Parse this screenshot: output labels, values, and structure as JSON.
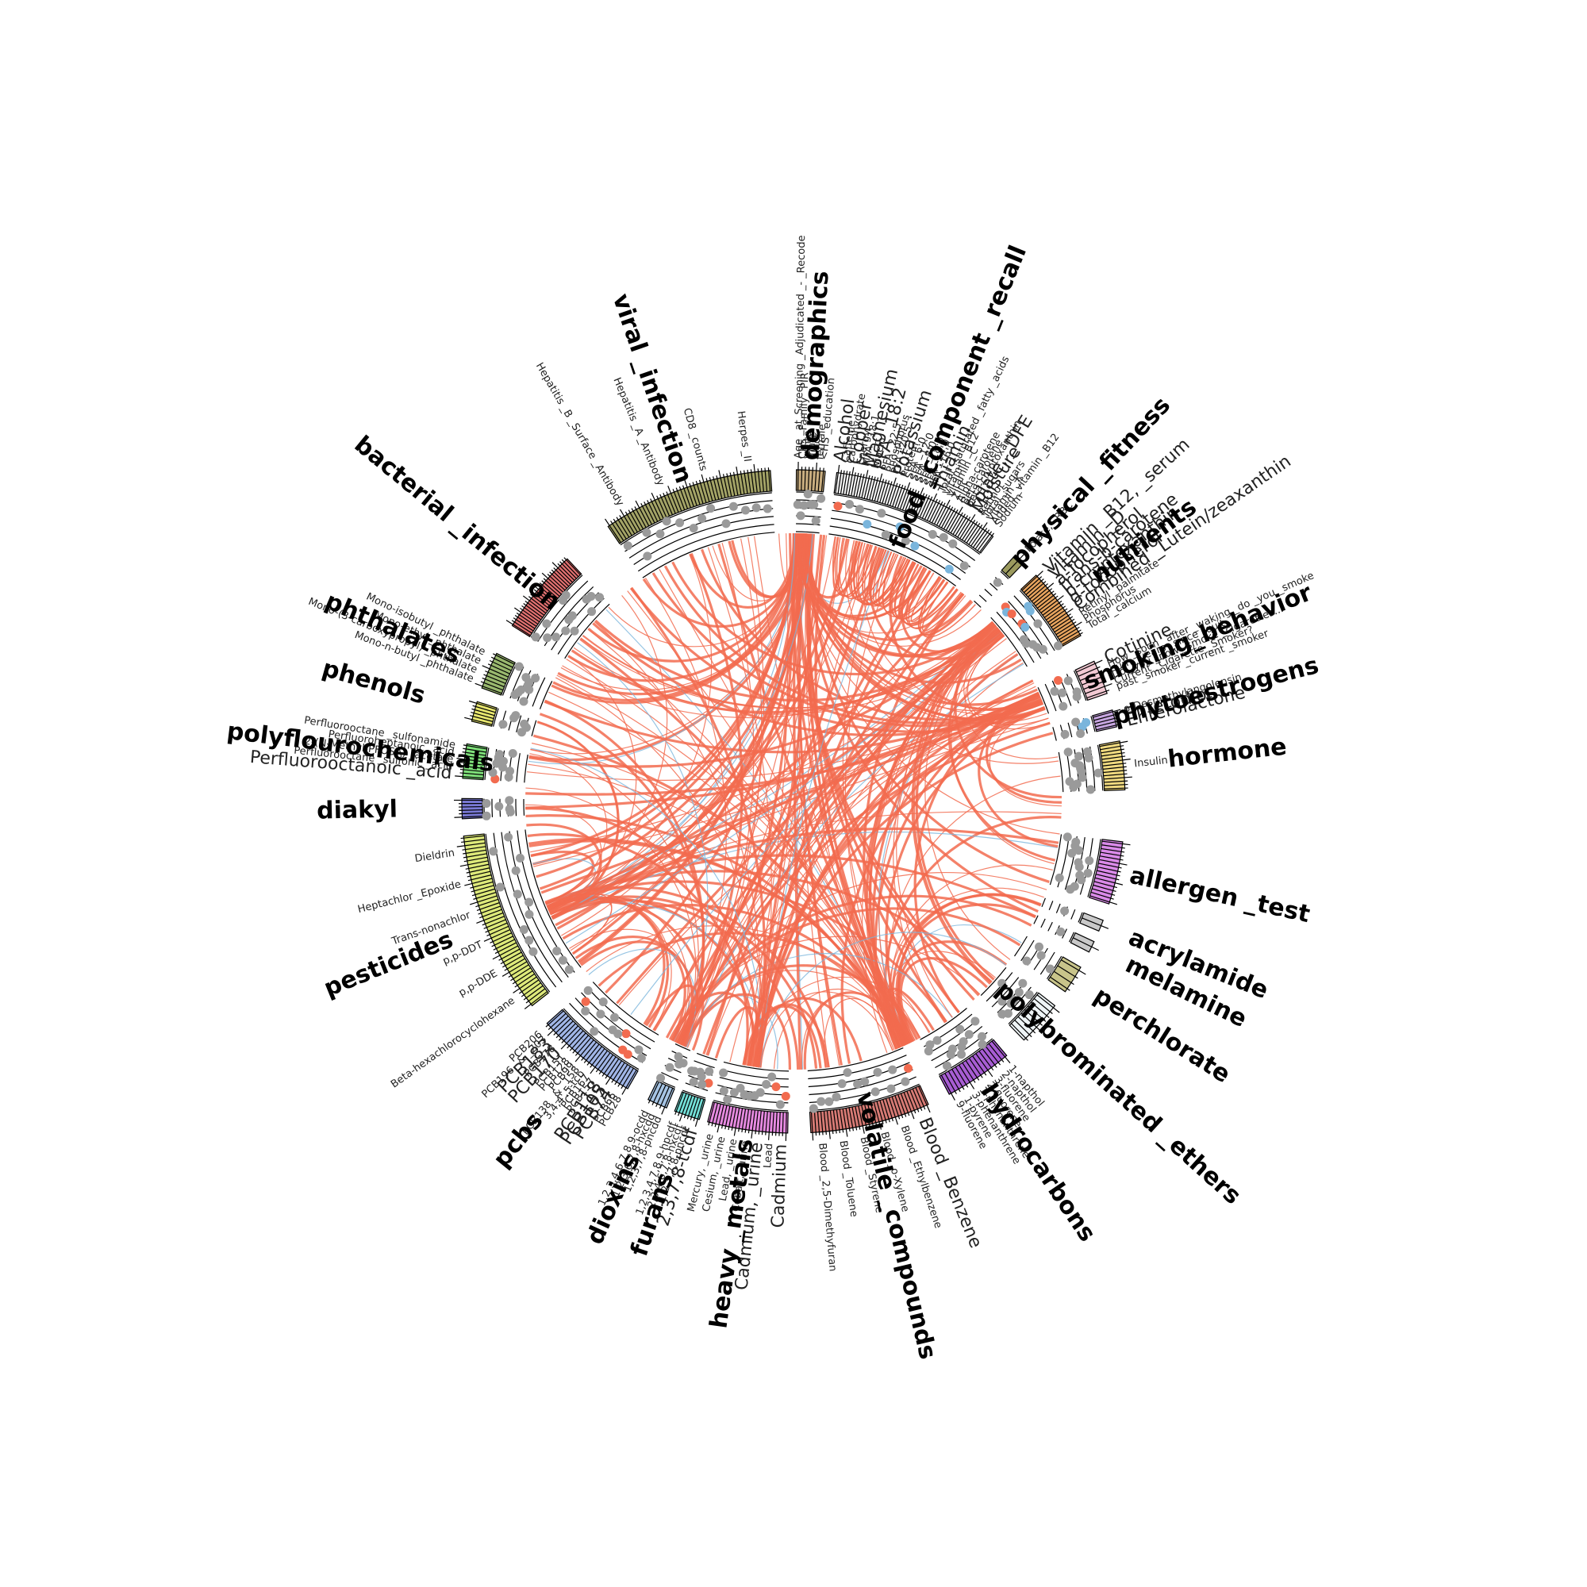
{
  "colors": {
    "positive": "#f26b4f",
    "negative": "#7ab5dc",
    "neutral": "#9a9a9a"
  },
  "categories": [
    {
      "name": "demographics",
      "color": "#c8ad7f",
      "n": 8,
      "labels": [
        {
          "text": "Age _at_Screening _Adjudicated _- _Recode",
          "color": "neutral"
        },
        {
          "text": "CPS _Family _PIR",
          "color": "neutral"
        },
        {
          "text": "white",
          "color": "neutral"
        },
        {
          "text": "male",
          "color": "neutral"
        },
        {
          "text": "black",
          "color": "neutral"
        },
        {
          "text": "female",
          "color": "neutral"
        },
        {
          "text": "<HS _education",
          "color": "neutral"
        }
      ]
    },
    {
      "name": "food _component _recall",
      "color": "#f3f3f3",
      "n": 60,
      "labels": [
        {
          "text": "Alcohol",
          "color": "positive"
        },
        {
          "text": "Caffeine",
          "color": "neutral"
        },
        {
          "text": "Carbohydrate",
          "color": "neutral"
        },
        {
          "text": "Copper",
          "color": "negative"
        },
        {
          "text": "Energy",
          "color": "neutral"
        },
        {
          "text": "MFA _18:1",
          "color": "neutral"
        },
        {
          "text": "Magnesium",
          "color": "negative"
        },
        {
          "text": "Niacin",
          "color": "neutral"
        },
        {
          "text": "PFA _18:2",
          "color": "negative"
        },
        {
          "text": "PFA _22:5",
          "color": "neutral"
        },
        {
          "text": "Phosphorus",
          "color": "neutral"
        },
        {
          "text": "PFA _20:5",
          "color": "neutral"
        },
        {
          "text": "Potassium",
          "color": "negative"
        },
        {
          "text": "Protein",
          "color": "neutral"
        },
        {
          "text": "SFA _6:0",
          "color": "neutral"
        },
        {
          "text": "SFA _12:0",
          "color": "neutral"
        },
        {
          "text": "SFA _8:0",
          "color": "neutral"
        },
        {
          "text": "SFA _18:0",
          "color": "neutral"
        },
        {
          "text": "SFA _14:0",
          "color": "neutral"
        },
        {
          "text": "SFA _16:0",
          "color": "neutral"
        },
        {
          "text": "Thiamin",
          "color": "negative"
        },
        {
          "text": "Total _saturated _fatty _acids",
          "color": "neutral"
        },
        {
          "text": "Vitamin _B12",
          "color": "neutral"
        },
        {
          "text": "Vitamin _C",
          "color": "neutral"
        },
        {
          "text": "Zinc",
          "color": "neutral"
        },
        {
          "text": "Alpha-carotene",
          "color": "neutral"
        },
        {
          "text": "Beta-carotene",
          "color": "neutral"
        },
        {
          "text": "Beta-cryptoxanthin",
          "color": "neutral"
        },
        {
          "text": "Folate, _DFE",
          "color": "negative"
        },
        {
          "text": "Moisture",
          "color": "positive"
        },
        {
          "text": "Retinol",
          "color": "neutral"
        },
        {
          "text": "Total _sugars",
          "color": "neutral"
        },
        {
          "text": "Vitamin _K",
          "color": "neutral"
        },
        {
          "text": "Added _vitamin _B12",
          "color": "neutral"
        },
        {
          "text": "Sodium",
          "color": "neutral"
        }
      ]
    },
    {
      "name": "physical _fitness",
      "color": "#9b9a5e",
      "n": 1,
      "labels": [
        {
          "text": "Folate, _RBC",
          "color": "neutral"
        }
      ]
    },
    {
      "name": "nutrients",
      "color": "#e6a35e",
      "n": 24,
      "labels": [
        {
          "text": "Vitamin _B12, _serum",
          "color": "positive"
        },
        {
          "text": "Vitamin _D",
          "color": "negative"
        },
        {
          "text": "a-Tocopherol",
          "color": "positive"
        },
        {
          "text": "trans-b-carotene",
          "color": "negative"
        },
        {
          "text": "b-cryptoxanthin",
          "color": "negative"
        },
        {
          "text": "g-tocopherol",
          "color": "positive"
        },
        {
          "text": "Combined _Lutein/zeaxanthin",
          "color": "negative"
        },
        {
          "text": "Retinyl _palmitate",
          "color": "neutral"
        },
        {
          "text": "Phosphorus",
          "color": "neutral"
        },
        {
          "text": "Total _calcium",
          "color": "neutral"
        }
      ]
    },
    {
      "name": "smoking_behavior",
      "color": "#f3c9d3",
      "n": 7,
      "labels": [
        {
          "text": "Cotinine",
          "color": "positive"
        },
        {
          "text": "How _soon _after _waking _do _you _smoke",
          "color": "neutral"
        },
        {
          "text": "num _years _since _quit",
          "color": "neutral"
        },
        {
          "text": "Do _you _now _smoke _cigarettes...",
          "color": "neutral"
        },
        {
          "text": "Current _Cigarette _Smoker?",
          "color": "neutral"
        },
        {
          "text": "past _smoker _current _smoker",
          "color": "neutral"
        }
      ]
    },
    {
      "name": "phytoestrogens",
      "color": "#c7a6e0",
      "n": 5,
      "labels": [
        {
          "text": "o-Desmethylangolensin",
          "color": "neutral"
        },
        {
          "text": "Enterodiol",
          "color": "negative"
        },
        {
          "text": "Enterolactone",
          "color": "negative"
        }
      ]
    },
    {
      "name": "hormone",
      "color": "#f0da80",
      "n": 14,
      "labels": [
        {
          "text": "Insulin",
          "color": "neutral"
        }
      ]
    },
    {
      "name": "allergen _test",
      "color": "#d98ae8",
      "n": 16,
      "labels": []
    },
    {
      "name": "acrylamide",
      "color": "#c9c9c9",
      "n": 1,
      "labels": []
    },
    {
      "name": "melamine",
      "color": "#c9c9c9",
      "n": 1,
      "labels": []
    },
    {
      "name": "perchlorate",
      "color": "#c8c48a",
      "n": 4,
      "labels": []
    },
    {
      "name": "polybrominated _ethers",
      "color": "#eef4f6",
      "n": 9,
      "labels": []
    },
    {
      "name": "hydrocarbons",
      "color": "#a75dd3",
      "n": 16,
      "labels": [
        {
          "text": "1-napthol",
          "color": "neutral"
        },
        {
          "text": "2-napthol",
          "color": "neutral"
        },
        {
          "text": "3-fluorene",
          "color": "neutral"
        },
        {
          "text": "2-fluorene",
          "color": "neutral"
        },
        {
          "text": "1-phenanthrene",
          "color": "neutral"
        },
        {
          "text": "3-phenanthrene",
          "color": "neutral"
        },
        {
          "text": "1-pyrene",
          "color": "neutral"
        },
        {
          "text": "9-fluorene",
          "color": "neutral"
        }
      ]
    },
    {
      "name": "volatile _compounds",
      "color": "#d67a74",
      "n": 36,
      "labels": [
        {
          "text": "Blood _Benzene",
          "color": "positive"
        },
        {
          "text": "Blood _Ethylbenzene",
          "color": "neutral"
        },
        {
          "text": "Blood _o-Xylene",
          "color": "neutral"
        },
        {
          "text": "Blood _Styrene",
          "color": "neutral"
        },
        {
          "text": "Blood _Toluene",
          "color": "neutral"
        },
        {
          "text": "Blood _2,5-Dimethyfuran",
          "color": "neutral"
        }
      ]
    },
    {
      "name": "heavy _metals",
      "color": "#e68ae0",
      "n": 24,
      "labels": [
        {
          "text": "Cadmium",
          "color": "positive"
        },
        {
          "text": "Lead",
          "color": "neutral"
        },
        {
          "text": "Cadmium, _urine",
          "color": "positive"
        },
        {
          "text": "Cobalt, _urine",
          "color": "neutral"
        },
        {
          "text": "Lead, _urine",
          "color": "neutral"
        },
        {
          "text": "Cesium, _urine",
          "color": "neutral"
        },
        {
          "text": "Mercury, _urine",
          "color": "neutral"
        }
      ]
    },
    {
      "name": "furans",
      "color": "#74e0d8",
      "n": 8,
      "labels": [
        {
          "text": "2,3,7,8-tcdf",
          "color": "positive"
        },
        {
          "text": "1,2,3,7,8-pncdf",
          "color": "neutral"
        },
        {
          "text": "2,3,4,6,7,8-hxcdf",
          "color": "neutral"
        },
        {
          "text": "1,2,3,4,7,8,9-hpcdf",
          "color": "neutral"
        }
      ]
    },
    {
      "name": "dioxins",
      "color": "#a6c4e4",
      "n": 5,
      "labels": [
        {
          "text": "1,2,3,7,8-pncdd",
          "color": "neutral"
        },
        {
          "text": "1,2,3,6,7,8-hxcdd",
          "color": "neutral"
        },
        {
          "text": "1,2,3,4,6,7,8,9-ocdd",
          "color": "neutral"
        }
      ]
    },
    {
      "name": "pcbs",
      "color": "#a0b5e6",
      "n": 28,
      "labels": [
        {
          "text": "PCB28",
          "color": "neutral"
        },
        {
          "text": "PCB66",
          "color": "neutral"
        },
        {
          "text": "PCB74",
          "color": "positive"
        },
        {
          "text": "PCB105",
          "color": "positive"
        },
        {
          "text": "PCB118",
          "color": "positive"
        },
        {
          "text": "PCB157",
          "color": "neutral"
        },
        {
          "text": "PCB167",
          "color": "neutral"
        },
        {
          "text": "3,4,4',5-tcb",
          "color": "neutral"
        },
        {
          "text": "PCB138 _& _158",
          "color": "neutral"
        },
        {
          "text": "PCB99",
          "color": "neutral"
        },
        {
          "text": "PCB128",
          "color": "neutral"
        },
        {
          "text": "PCB151",
          "color": "neutral"
        },
        {
          "text": "PCB170",
          "color": "positive"
        },
        {
          "text": "PCB178",
          "color": "neutral"
        },
        {
          "text": "PCB183",
          "color": "positive"
        },
        {
          "text": "PCB196 _& _203",
          "color": "neutral"
        },
        {
          "text": "PCB206",
          "color": "neutral"
        }
      ]
    },
    {
      "name": "pesticides",
      "color": "#dde97a",
      "n": 48,
      "labels": [
        {
          "text": "Beta-hexachlorocyclohexane",
          "color": "neutral"
        },
        {
          "text": "p,p-DDE",
          "color": "neutral"
        },
        {
          "text": "p,p-DDT",
          "color": "neutral"
        },
        {
          "text": "Trans-nonachlor",
          "color": "neutral"
        },
        {
          "text": "Heptachlor _Epoxide",
          "color": "neutral"
        },
        {
          "text": "Dieldrin",
          "color": "neutral"
        }
      ]
    },
    {
      "name": "diakyl",
      "color": "#7a7ad6",
      "n": 6,
      "labels": []
    },
    {
      "name": "polyflourochemicals",
      "color": "#7fe07a",
      "n": 10,
      "labels": [
        {
          "text": "Perfluorooctanoic _acid",
          "color": "positive"
        },
        {
          "text": "Perfluorooctane _sulfonic _acid",
          "color": "neutral"
        },
        {
          "text": "2-(N-Methyl-PFOSA) _acetate",
          "color": "neutral"
        },
        {
          "text": "Perfluoroheptanoic _acid",
          "color": "neutral"
        },
        {
          "text": "Perfluorooctane _sulfonamide",
          "color": "neutral"
        }
      ]
    },
    {
      "name": "phenols",
      "color": "#e7e66e",
      "n": 6,
      "labels": []
    },
    {
      "name": "phthalates",
      "color": "#99b86e",
      "n": 10,
      "labels": [
        {
          "text": "Mono-n-butyl _phthalate",
          "color": "neutral"
        },
        {
          "text": "Mono-(3-carboxypropyl) _phthalate",
          "color": "neutral"
        },
        {
          "text": "Mono-ethyl _phthalate",
          "color": "neutral"
        },
        {
          "text": "Mono-isobutyl _phthalate",
          "color": "neutral"
        }
      ]
    },
    {
      "name": "bacterial _infection",
      "color": "#e07070",
      "n": 30,
      "labels": []
    },
    {
      "name": "viral _infection",
      "color": "#a3a366",
      "n": 50,
      "labels": [
        {
          "text": "Hepatitis _B _Surface _Antibody",
          "color": "neutral"
        },
        {
          "text": "Hepatitis _A _Antibody",
          "color": "neutral"
        },
        {
          "text": "CD8 _counts",
          "color": "neutral"
        },
        {
          "text": "Herpes _II",
          "color": "neutral"
        }
      ]
    }
  ]
}
